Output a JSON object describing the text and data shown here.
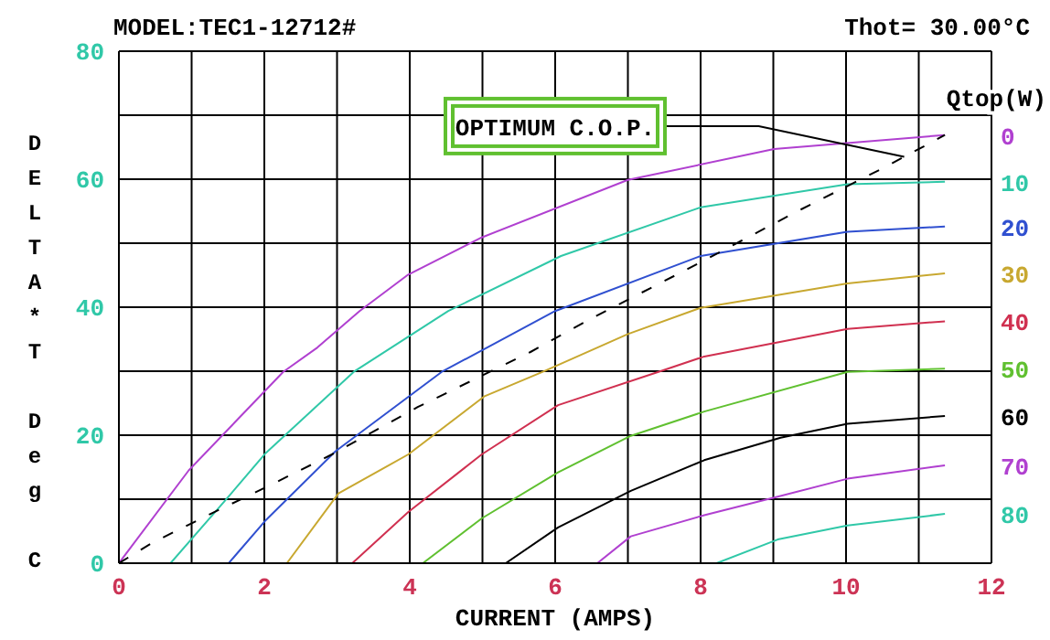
{
  "chart_data": {
    "type": "line",
    "title": "MODEL:TEC1-12712#",
    "subtitle": "Thot= 30.00°C",
    "xlabel": "CURRENT (AMPS)",
    "ylabel": "DELTA*T Deg C",
    "legend_title": "Qtop(W)",
    "xlim": [
      0,
      12
    ],
    "xticks": [
      0,
      {
        "value": 1,
        "label": null
      },
      2,
      {
        "value": 3,
        "label": null
      },
      4,
      {
        "value": 5,
        "label": null
      },
      6,
      {
        "value": 7,
        "label": null
      },
      8,
      {
        "value": 9,
        "label": null
      },
      10,
      {
        "value": 11,
        "label": null
      },
      12
    ],
    "ylim": [
      0,
      80
    ],
    "yticks": [
      0,
      {
        "value": 10,
        "label": null
      },
      20,
      {
        "value": 30,
        "label": null
      },
      40,
      {
        "value": 50,
        "label": null
      },
      60,
      {
        "value": 70,
        "label": null
      },
      80
    ],
    "grid": true,
    "marker": "none",
    "line_style": "solid",
    "annotations": [
      {
        "text": "OPTIMUM C.O.P.",
        "x": 10.8,
        "y": 63.5
      }
    ],
    "series": [
      {
        "name": "0",
        "color": "#b040d0",
        "x": [
          0,
          0.96,
          2.26,
          2.73,
          3.31,
          3.98,
          4.99,
          7.0,
          9.01,
          11.36
        ],
        "values": [
          0,
          14.5,
          29.9,
          33.7,
          39.4,
          45.1,
          50.9,
          59.9,
          64.7,
          66.9
        ]
      },
      {
        "name": "10",
        "color": "#30c8a8",
        "x": [
          0.71,
          1.47,
          2.01,
          3.23,
          4.53,
          6.08,
          8.0,
          10.02,
          11.36
        ],
        "values": [
          0,
          9.9,
          17.1,
          29.9,
          39.4,
          48,
          55.6,
          59.2,
          59.6
        ]
      },
      {
        "name": "20",
        "color": "#3050d0",
        "x": [
          1.51,
          2.01,
          2.98,
          4.44,
          6.0,
          8.0,
          10.02,
          11.36
        ],
        "values": [
          0,
          6.6,
          17.5,
          29.9,
          39.4,
          48,
          51.8,
          52.6
        ]
      },
      {
        "name": "30",
        "color": "#c8a830",
        "x": [
          2.31,
          3.02,
          3.98,
          5.03,
          5.83,
          7.0,
          8.0,
          10.02,
          11.36
        ],
        "values": [
          0,
          10.9,
          17,
          26.1,
          29.9,
          35.8,
          39.9,
          43.7,
          45.3
        ]
      },
      {
        "name": "40",
        "color": "#d03050",
        "x": [
          3.21,
          3.98,
          4.99,
          6.04,
          7.42,
          8.05,
          10.02,
          11.36
        ],
        "values": [
          0,
          8,
          17,
          24.7,
          29.9,
          32.3,
          36.6,
          37.8
        ]
      },
      {
        "name": "50",
        "color": "#60c030",
        "x": [
          4.18,
          4.99,
          6.04,
          7.04,
          8.05,
          10.02,
          11.36
        ],
        "values": [
          0,
          7,
          14.2,
          19.9,
          23.7,
          29.9,
          30.4
        ]
      },
      {
        "name": "60",
        "color": "#000000",
        "x": [
          5.32,
          6.04,
          7.04,
          8.05,
          9.1,
          10.02,
          11.36
        ],
        "values": [
          0,
          5.6,
          11.3,
          16.1,
          19.6,
          21.8,
          23
        ]
      },
      {
        "name": "70",
        "color": "#b040d0",
        "x": [
          6.58,
          7.04,
          8.05,
          9.06,
          10.02,
          11.36
        ],
        "values": [
          0,
          4.2,
          7.5,
          10.4,
          13.2,
          15.3
        ]
      },
      {
        "name": "80",
        "color": "#30c8a8",
        "x": [
          8.22,
          9.06,
          10.02,
          11.36
        ],
        "values": [
          0,
          3.7,
          5.9,
          7.7
        ]
      },
      {
        "color": "#000000",
        "line_style": "dashed",
        "x": [
          0,
          0.46,
          1.26,
          2.1,
          2.93,
          4.11,
          5.66,
          6.54,
          7.76,
          9.35,
          10.52,
          11.36
        ],
        "values": [
          0,
          3.2,
          7.7,
          12.3,
          17,
          24.4,
          33,
          38.5,
          45.6,
          55.1,
          61.8,
          66.9
        ]
      }
    ]
  }
}
